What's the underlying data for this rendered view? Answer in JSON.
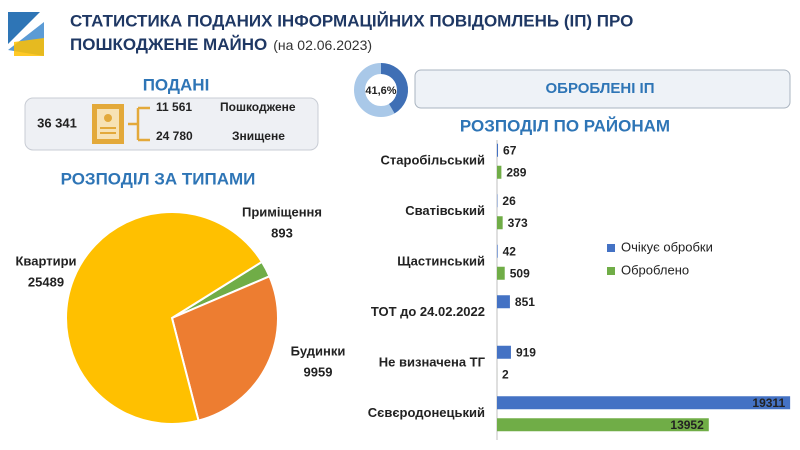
{
  "header": {
    "title": [
      "СТАТИСТИКА ПОДАНИХ ІНФОРМАЦІЙНИХ ПОВІДОМЛЕНЬ (ІП) ПРО",
      "ПОШКОДЖЕНЕ МАЙНО"
    ],
    "date": "(на 02.06.2023)"
  },
  "submitted": {
    "title": "ПОДАНІ",
    "total": "36 341",
    "items": [
      {
        "value": "11 561",
        "label": "Пошкоджене"
      },
      {
        "value": "24 780",
        "label": "Знищене"
      }
    ]
  },
  "chart_data": [
    {
      "type": "pie",
      "title": "РОЗПОДІЛ ЗА ТИПАМИ",
      "categories": [
        "Приміщення",
        "Будинки",
        "Квартири"
      ],
      "values": [
        893,
        9959,
        25489
      ],
      "colors": [
        "#70ad47",
        "#ed7d31",
        "#ffc000"
      ]
    },
    {
      "type": "donut",
      "title": "ОБРОБЛЕНІ ІП",
      "values": [
        41.6
      ],
      "value_labels": [
        "41,6%"
      ],
      "color": "#3f6fb5",
      "track_color": "#a9c8e8"
    },
    {
      "type": "hbar",
      "title": "РОЗПОДІЛ ПО РАЙОНАМ",
      "categories": [
        "Старобільський",
        "Сватівський",
        "Щастинський",
        "ТОТ до 24.02.2022",
        "Не визначена ТГ",
        "Сєвєродонецький"
      ],
      "series": [
        {
          "name": "Очікує обробки",
          "color": "#4472c4",
          "values": [
            67,
            26,
            42,
            851,
            919,
            19311
          ]
        },
        {
          "name": "Оброблено",
          "color": "#70ad47",
          "values": [
            289,
            373,
            509,
            null,
            2,
            13952
          ]
        }
      ],
      "xlim": [
        0,
        19500
      ],
      "legend": "right"
    }
  ]
}
